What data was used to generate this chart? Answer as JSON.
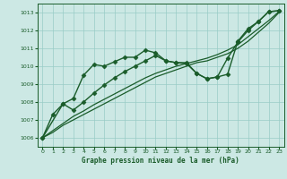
{
  "title": "Graphe pression niveau de la mer (hPa)",
  "bg_color": "#cce8e4",
  "grid_color": "#99ccc6",
  "line_color": "#1a5c2a",
  "xlim": [
    -0.5,
    23.5
  ],
  "ylim": [
    1005.5,
    1013.5
  ],
  "yticks": [
    1006,
    1007,
    1008,
    1009,
    1010,
    1011,
    1012,
    1013
  ],
  "xticks": [
    0,
    1,
    2,
    3,
    4,
    5,
    6,
    7,
    8,
    9,
    10,
    11,
    12,
    13,
    14,
    15,
    16,
    17,
    18,
    19,
    20,
    21,
    22,
    23
  ],
  "series": [
    {
      "x": [
        0,
        1,
        2,
        3,
        4,
        5,
        6,
        7,
        8,
        9,
        10,
        11,
        12,
        13,
        14,
        15,
        16,
        17,
        18,
        19,
        20,
        21,
        22,
        23
      ],
      "y": [
        1006.0,
        1007.3,
        1007.9,
        1008.2,
        1009.5,
        1010.1,
        1010.0,
        1010.25,
        1010.5,
        1010.5,
        1010.9,
        1010.75,
        1010.3,
        1010.2,
        1010.2,
        1009.6,
        1009.3,
        1009.4,
        1009.55,
        1011.4,
        1012.1,
        1012.5,
        1013.05,
        1013.1
      ],
      "marker": "D",
      "ms": 2.5,
      "lw": 1.0
    },
    {
      "x": [
        0,
        1,
        2,
        3,
        4,
        5,
        6,
        7,
        8,
        9,
        10,
        11,
        12,
        13,
        14,
        15,
        16,
        17,
        18,
        19,
        20,
        21,
        22,
        23
      ],
      "y": [
        1006.0,
        1006.3,
        1006.7,
        1007.0,
        1007.3,
        1007.6,
        1007.9,
        1008.2,
        1008.5,
        1008.8,
        1009.1,
        1009.4,
        1009.6,
        1009.8,
        1010.0,
        1010.2,
        1010.3,
        1010.5,
        1010.7,
        1011.0,
        1011.4,
        1011.9,
        1012.4,
        1013.0
      ],
      "marker": null,
      "ms": 0,
      "lw": 0.9
    },
    {
      "x": [
        0,
        1,
        2,
        3,
        4,
        5,
        6,
        7,
        8,
        9,
        10,
        11,
        12,
        13,
        14,
        15,
        16,
        17,
        18,
        19,
        20,
        21,
        22,
        23
      ],
      "y": [
        1006.0,
        1006.4,
        1006.8,
        1007.2,
        1007.5,
        1007.85,
        1008.15,
        1008.45,
        1008.75,
        1009.05,
        1009.35,
        1009.6,
        1009.8,
        1010.0,
        1010.15,
        1010.3,
        1010.45,
        1010.65,
        1010.9,
        1011.2,
        1011.65,
        1012.1,
        1012.55,
        1013.05
      ],
      "marker": null,
      "ms": 0,
      "lw": 0.9
    },
    {
      "x": [
        0,
        2,
        3,
        4,
        5,
        6,
        7,
        8,
        9,
        10,
        11,
        12,
        13,
        14,
        15,
        16,
        17,
        18,
        19,
        20,
        21,
        22,
        23
      ],
      "y": [
        1006.0,
        1007.9,
        1007.55,
        1008.0,
        1008.5,
        1008.95,
        1009.35,
        1009.7,
        1010.0,
        1010.3,
        1010.6,
        1010.3,
        1010.2,
        1010.15,
        1009.6,
        1009.3,
        1009.4,
        1010.45,
        1011.35,
        1012.0,
        1012.5,
        1013.05,
        1013.1
      ],
      "marker": "D",
      "ms": 2.5,
      "lw": 1.0
    }
  ]
}
